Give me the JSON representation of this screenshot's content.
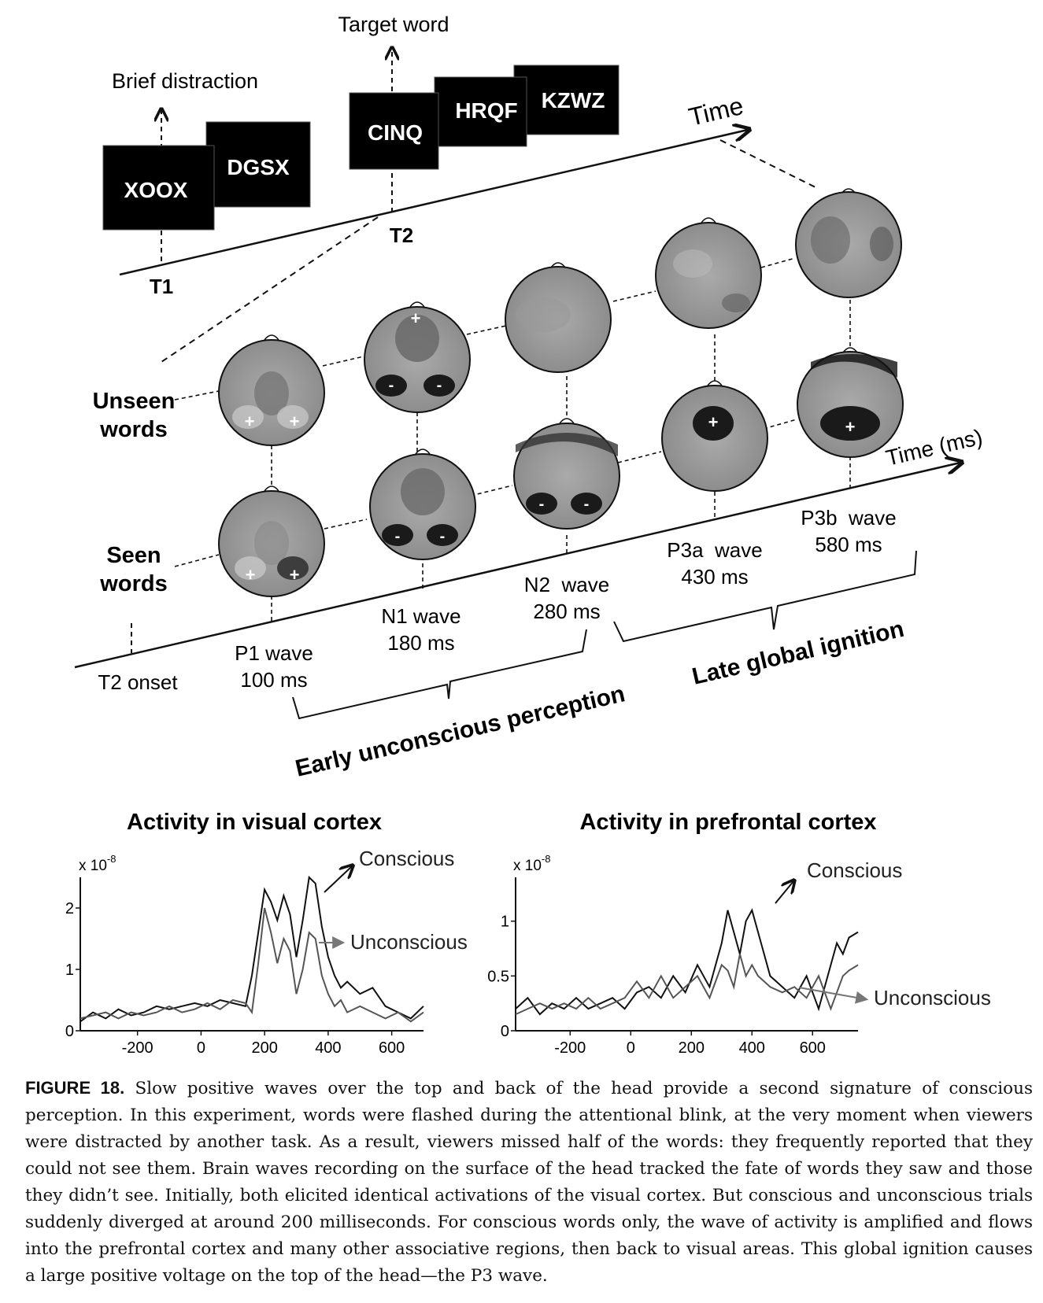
{
  "timeline_top": {
    "axis_label": "Time",
    "t1_label": "T1",
    "t2_label": "T2",
    "distraction_label": "Brief distraction",
    "target_label": "Target word",
    "stimuli_t1": [
      "XOOX",
      "DGSX"
    ],
    "stimuli_t2": [
      "CINQ",
      "HRQF",
      "KZWZ"
    ]
  },
  "timeline_bottom": {
    "axis_label": "Time (ms)",
    "onset_label": "T2 onset",
    "row_unseen": [
      "Unseen",
      "words"
    ],
    "row_seen": [
      "Seen",
      "words"
    ],
    "waves": [
      {
        "name": "P1 wave",
        "latency": "100 ms"
      },
      {
        "name": "N1 wave",
        "latency": "180 ms"
      },
      {
        "name": "N2  wave",
        "latency": "280 ms"
      },
      {
        "name": "P3a  wave",
        "latency": "430 ms"
      },
      {
        "name": "P3b  wave",
        "latency": "580 ms"
      }
    ],
    "bracket_early": "Early unconscious perception",
    "bracket_late": "Late global ignition"
  },
  "chart_data": [
    {
      "type": "line",
      "title": "Activity in visual cortex",
      "yunit": "x 10-8",
      "xlim": [
        -380,
        700
      ],
      "ylim": [
        0,
        2.5
      ],
      "xticks": [
        "-200",
        "0",
        "200",
        "400",
        "600"
      ],
      "yticks": [
        "0",
        "1",
        "2"
      ],
      "series": [
        {
          "name": "Conscious",
          "x": [
            -380,
            -340,
            -300,
            -260,
            -220,
            -180,
            -140,
            -100,
            -60,
            -20,
            20,
            60,
            100,
            140,
            160,
            180,
            200,
            220,
            240,
            260,
            280,
            300,
            320,
            340,
            360,
            380,
            400,
            420,
            440,
            460,
            500,
            540,
            580,
            620,
            660,
            700
          ],
          "y": [
            0.15,
            0.3,
            0.2,
            0.35,
            0.25,
            0.3,
            0.4,
            0.35,
            0.4,
            0.45,
            0.4,
            0.5,
            0.45,
            0.4,
            0.9,
            1.6,
            2.3,
            2.1,
            1.8,
            2.2,
            1.9,
            1.2,
            1.8,
            2.5,
            2.4,
            1.7,
            1.2,
            0.9,
            0.7,
            0.8,
            0.6,
            0.7,
            0.4,
            0.3,
            0.2,
            0.4
          ]
        },
        {
          "name": "Unconscious",
          "x": [
            -380,
            -340,
            -300,
            -260,
            -220,
            -180,
            -140,
            -100,
            -60,
            -20,
            20,
            60,
            100,
            140,
            160,
            180,
            200,
            220,
            240,
            260,
            280,
            300,
            320,
            340,
            360,
            380,
            400,
            420,
            440,
            460,
            500,
            540,
            580,
            620,
            660,
            700
          ],
          "y": [
            0.2,
            0.25,
            0.3,
            0.2,
            0.3,
            0.25,
            0.3,
            0.4,
            0.3,
            0.35,
            0.45,
            0.35,
            0.5,
            0.45,
            0.3,
            1.1,
            2.0,
            1.6,
            1.1,
            1.5,
            1.3,
            0.6,
            1.0,
            1.6,
            1.5,
            0.9,
            0.6,
            0.4,
            0.5,
            0.3,
            0.4,
            0.3,
            0.2,
            0.3,
            0.15,
            0.3
          ]
        }
      ]
    },
    {
      "type": "line",
      "title": "Activity in prefrontal cortex",
      "yunit": "x 10-8",
      "xlim": [
        -380,
        750
      ],
      "ylim": [
        0,
        1.4
      ],
      "xticks": [
        "-200",
        "0",
        "200",
        "400",
        "600"
      ],
      "yticks": [
        "0",
        "0.5",
        "1"
      ],
      "series": [
        {
          "name": "Conscious",
          "x": [
            -380,
            -340,
            -300,
            -260,
            -220,
            -180,
            -140,
            -100,
            -60,
            -20,
            20,
            60,
            100,
            140,
            180,
            220,
            260,
            300,
            320,
            340,
            360,
            380,
            400,
            420,
            440,
            460,
            500,
            540,
            580,
            620,
            660,
            680,
            700,
            720,
            750
          ],
          "y": [
            0.2,
            0.3,
            0.15,
            0.25,
            0.2,
            0.3,
            0.2,
            0.25,
            0.3,
            0.2,
            0.35,
            0.4,
            0.3,
            0.5,
            0.35,
            0.6,
            0.4,
            0.8,
            1.1,
            0.9,
            0.7,
            1.0,
            1.1,
            0.9,
            0.7,
            0.5,
            0.4,
            0.3,
            0.5,
            0.2,
            0.6,
            0.8,
            0.7,
            0.85,
            0.9
          ]
        },
        {
          "name": "Unconscious",
          "x": [
            -380,
            -340,
            -300,
            -260,
            -220,
            -180,
            -140,
            -100,
            -60,
            -20,
            20,
            60,
            100,
            140,
            180,
            220,
            260,
            300,
            320,
            340,
            360,
            380,
            400,
            420,
            440,
            460,
            500,
            540,
            580,
            620,
            660,
            680,
            700,
            720,
            750
          ],
          "y": [
            0.15,
            0.2,
            0.25,
            0.2,
            0.25,
            0.2,
            0.3,
            0.2,
            0.25,
            0.3,
            0.45,
            0.3,
            0.5,
            0.3,
            0.4,
            0.5,
            0.3,
            0.6,
            0.55,
            0.4,
            0.7,
            0.5,
            0.6,
            0.5,
            0.45,
            0.4,
            0.35,
            0.4,
            0.3,
            0.5,
            0.2,
            0.35,
            0.5,
            0.55,
            0.6
          ]
        }
      ]
    }
  ],
  "caption": {
    "label": "FIGURE 18.",
    "text": " Slow positive waves over the top and back of the head provide a second signature of conscious perception. In this experiment, words were flashed during the attentional blink, at the very moment when viewers were distracted by another task. As a result, viewers missed half of the words: they frequently reported that they could not see them. Brain waves recording on the surface of the head tracked the fate of words they saw and those they didn’t see. Initially, both elicited identical activations of the visual cortex. But conscious and unconscious trials suddenly diverged at around 200 milliseconds. For conscious words only, the wave of activity is amplified and flows into the prefrontal cortex and many other associative regions, then back to visual areas. This global ignition causes a large positive voltage on the top of the head—the P3 wave."
  }
}
